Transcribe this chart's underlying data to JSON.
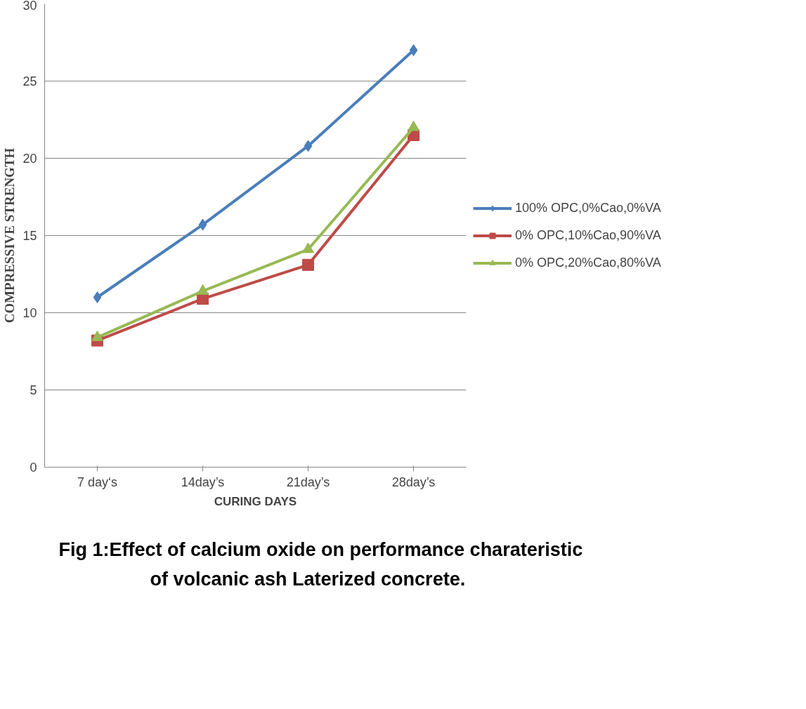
{
  "chart_data": {
    "type": "line",
    "xlabel": "CURING DAYS",
    "ylabel": "COMPRESSIVE STRENGTH",
    "categories": [
      "7 day‘s",
      "14day’s",
      "21day’s",
      "28day’s"
    ],
    "series": [
      {
        "name": "100% OPC,0%Cao,0%VA",
        "color": "#4a7ebb",
        "marker": "diamond",
        "values": [
          11.0,
          15.7,
          20.8,
          27.0
        ]
      },
      {
        "name": "0% OPC,10%Cao,90%VA",
        "color": "#be4b48",
        "marker": "square",
        "values": [
          8.2,
          10.9,
          13.1,
          21.5
        ]
      },
      {
        "name": "0% OPC,20%Cao,80%VA",
        "color": "#98b954",
        "marker": "triangle",
        "values": [
          8.4,
          11.4,
          14.1,
          22.0
        ]
      }
    ],
    "ylim": [
      0,
      30
    ],
    "yticks": [
      0,
      5,
      10,
      15,
      20,
      25,
      30
    ],
    "grid": "y",
    "legend": "right",
    "line_style": "solid",
    "annotations": [
      "Fig 1:Effect of calcium oxide on performance charateristic of volcanic ash Laterized concrete."
    ]
  }
}
